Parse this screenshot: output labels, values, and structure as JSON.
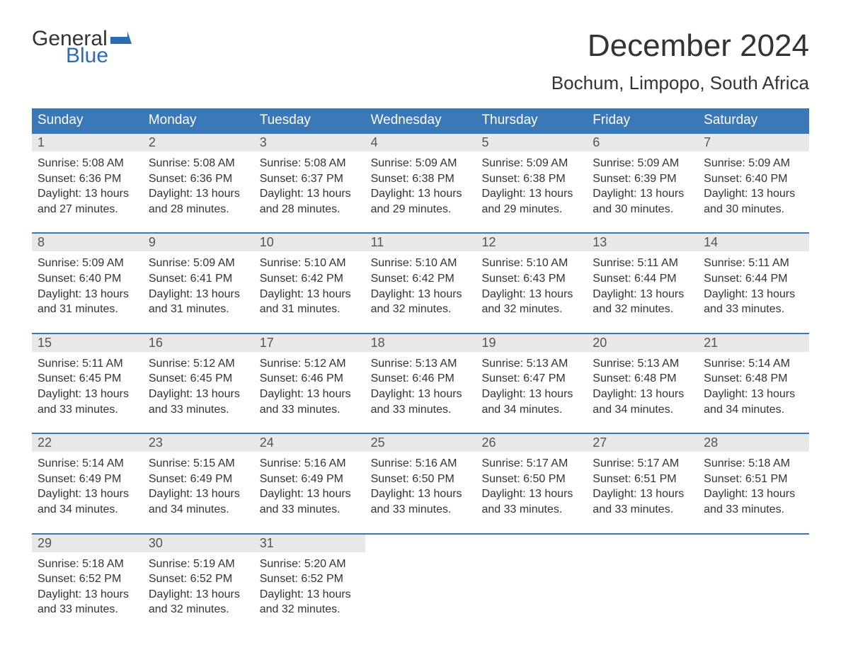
{
  "logo": {
    "text1": "General",
    "text2": "Blue",
    "flag_color": "#2a6db5"
  },
  "title": "December 2024",
  "location": "Bochum, Limpopo, South Africa",
  "colors": {
    "header_bg": "#3a78b8",
    "header_text": "#ffffff",
    "daynum_bg": "#e8e8e8",
    "daynum_text": "#555555",
    "body_text": "#333333",
    "row_border": "#3a78b8",
    "page_bg": "#ffffff",
    "logo_accent": "#2a6db5"
  },
  "typography": {
    "title_fontsize": 44,
    "location_fontsize": 26,
    "dayheader_fontsize": 19,
    "daynum_fontsize": 18,
    "body_fontsize": 16,
    "logo_fontsize": 30,
    "font_family": "Arial"
  },
  "day_headers": [
    "Sunday",
    "Monday",
    "Tuesday",
    "Wednesday",
    "Thursday",
    "Friday",
    "Saturday"
  ],
  "weeks": [
    [
      {
        "num": "1",
        "sunrise": "Sunrise: 5:08 AM",
        "sunset": "Sunset: 6:36 PM",
        "daylight1": "Daylight: 13 hours",
        "daylight2": "and 27 minutes."
      },
      {
        "num": "2",
        "sunrise": "Sunrise: 5:08 AM",
        "sunset": "Sunset: 6:36 PM",
        "daylight1": "Daylight: 13 hours",
        "daylight2": "and 28 minutes."
      },
      {
        "num": "3",
        "sunrise": "Sunrise: 5:08 AM",
        "sunset": "Sunset: 6:37 PM",
        "daylight1": "Daylight: 13 hours",
        "daylight2": "and 28 minutes."
      },
      {
        "num": "4",
        "sunrise": "Sunrise: 5:09 AM",
        "sunset": "Sunset: 6:38 PM",
        "daylight1": "Daylight: 13 hours",
        "daylight2": "and 29 minutes."
      },
      {
        "num": "5",
        "sunrise": "Sunrise: 5:09 AM",
        "sunset": "Sunset: 6:38 PM",
        "daylight1": "Daylight: 13 hours",
        "daylight2": "and 29 minutes."
      },
      {
        "num": "6",
        "sunrise": "Sunrise: 5:09 AM",
        "sunset": "Sunset: 6:39 PM",
        "daylight1": "Daylight: 13 hours",
        "daylight2": "and 30 minutes."
      },
      {
        "num": "7",
        "sunrise": "Sunrise: 5:09 AM",
        "sunset": "Sunset: 6:40 PM",
        "daylight1": "Daylight: 13 hours",
        "daylight2": "and 30 minutes."
      }
    ],
    [
      {
        "num": "8",
        "sunrise": "Sunrise: 5:09 AM",
        "sunset": "Sunset: 6:40 PM",
        "daylight1": "Daylight: 13 hours",
        "daylight2": "and 31 minutes."
      },
      {
        "num": "9",
        "sunrise": "Sunrise: 5:09 AM",
        "sunset": "Sunset: 6:41 PM",
        "daylight1": "Daylight: 13 hours",
        "daylight2": "and 31 minutes."
      },
      {
        "num": "10",
        "sunrise": "Sunrise: 5:10 AM",
        "sunset": "Sunset: 6:42 PM",
        "daylight1": "Daylight: 13 hours",
        "daylight2": "and 31 minutes."
      },
      {
        "num": "11",
        "sunrise": "Sunrise: 5:10 AM",
        "sunset": "Sunset: 6:42 PM",
        "daylight1": "Daylight: 13 hours",
        "daylight2": "and 32 minutes."
      },
      {
        "num": "12",
        "sunrise": "Sunrise: 5:10 AM",
        "sunset": "Sunset: 6:43 PM",
        "daylight1": "Daylight: 13 hours",
        "daylight2": "and 32 minutes."
      },
      {
        "num": "13",
        "sunrise": "Sunrise: 5:11 AM",
        "sunset": "Sunset: 6:44 PM",
        "daylight1": "Daylight: 13 hours",
        "daylight2": "and 32 minutes."
      },
      {
        "num": "14",
        "sunrise": "Sunrise: 5:11 AM",
        "sunset": "Sunset: 6:44 PM",
        "daylight1": "Daylight: 13 hours",
        "daylight2": "and 33 minutes."
      }
    ],
    [
      {
        "num": "15",
        "sunrise": "Sunrise: 5:11 AM",
        "sunset": "Sunset: 6:45 PM",
        "daylight1": "Daylight: 13 hours",
        "daylight2": "and 33 minutes."
      },
      {
        "num": "16",
        "sunrise": "Sunrise: 5:12 AM",
        "sunset": "Sunset: 6:45 PM",
        "daylight1": "Daylight: 13 hours",
        "daylight2": "and 33 minutes."
      },
      {
        "num": "17",
        "sunrise": "Sunrise: 5:12 AM",
        "sunset": "Sunset: 6:46 PM",
        "daylight1": "Daylight: 13 hours",
        "daylight2": "and 33 minutes."
      },
      {
        "num": "18",
        "sunrise": "Sunrise: 5:13 AM",
        "sunset": "Sunset: 6:46 PM",
        "daylight1": "Daylight: 13 hours",
        "daylight2": "and 33 minutes."
      },
      {
        "num": "19",
        "sunrise": "Sunrise: 5:13 AM",
        "sunset": "Sunset: 6:47 PM",
        "daylight1": "Daylight: 13 hours",
        "daylight2": "and 34 minutes."
      },
      {
        "num": "20",
        "sunrise": "Sunrise: 5:13 AM",
        "sunset": "Sunset: 6:48 PM",
        "daylight1": "Daylight: 13 hours",
        "daylight2": "and 34 minutes."
      },
      {
        "num": "21",
        "sunrise": "Sunrise: 5:14 AM",
        "sunset": "Sunset: 6:48 PM",
        "daylight1": "Daylight: 13 hours",
        "daylight2": "and 34 minutes."
      }
    ],
    [
      {
        "num": "22",
        "sunrise": "Sunrise: 5:14 AM",
        "sunset": "Sunset: 6:49 PM",
        "daylight1": "Daylight: 13 hours",
        "daylight2": "and 34 minutes."
      },
      {
        "num": "23",
        "sunrise": "Sunrise: 5:15 AM",
        "sunset": "Sunset: 6:49 PM",
        "daylight1": "Daylight: 13 hours",
        "daylight2": "and 34 minutes."
      },
      {
        "num": "24",
        "sunrise": "Sunrise: 5:16 AM",
        "sunset": "Sunset: 6:49 PM",
        "daylight1": "Daylight: 13 hours",
        "daylight2": "and 33 minutes."
      },
      {
        "num": "25",
        "sunrise": "Sunrise: 5:16 AM",
        "sunset": "Sunset: 6:50 PM",
        "daylight1": "Daylight: 13 hours",
        "daylight2": "and 33 minutes."
      },
      {
        "num": "26",
        "sunrise": "Sunrise: 5:17 AM",
        "sunset": "Sunset: 6:50 PM",
        "daylight1": "Daylight: 13 hours",
        "daylight2": "and 33 minutes."
      },
      {
        "num": "27",
        "sunrise": "Sunrise: 5:17 AM",
        "sunset": "Sunset: 6:51 PM",
        "daylight1": "Daylight: 13 hours",
        "daylight2": "and 33 minutes."
      },
      {
        "num": "28",
        "sunrise": "Sunrise: 5:18 AM",
        "sunset": "Sunset: 6:51 PM",
        "daylight1": "Daylight: 13 hours",
        "daylight2": "and 33 minutes."
      }
    ],
    [
      {
        "num": "29",
        "sunrise": "Sunrise: 5:18 AM",
        "sunset": "Sunset: 6:52 PM",
        "daylight1": "Daylight: 13 hours",
        "daylight2": "and 33 minutes."
      },
      {
        "num": "30",
        "sunrise": "Sunrise: 5:19 AM",
        "sunset": "Sunset: 6:52 PM",
        "daylight1": "Daylight: 13 hours",
        "daylight2": "and 32 minutes."
      },
      {
        "num": "31",
        "sunrise": "Sunrise: 5:20 AM",
        "sunset": "Sunset: 6:52 PM",
        "daylight1": "Daylight: 13 hours",
        "daylight2": "and 32 minutes."
      },
      {
        "empty": true
      },
      {
        "empty": true
      },
      {
        "empty": true
      },
      {
        "empty": true
      }
    ]
  ]
}
